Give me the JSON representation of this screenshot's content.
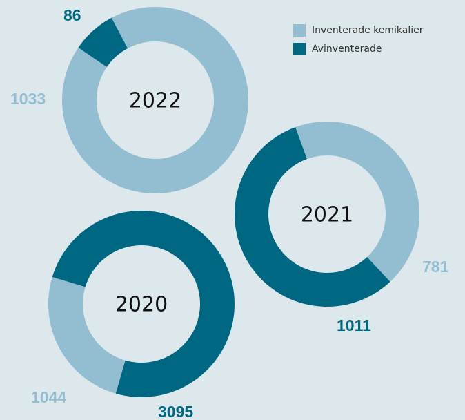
{
  "legend": {
    "categories": [
      "Inventerade kemikalier",
      "Avinventerade"
    ],
    "colors": [
      "#93bdd0",
      "#006783"
    ]
  },
  "chart_data": [
    {
      "type": "donut",
      "title": "2022",
      "values": [
        1033,
        86
      ]
    },
    {
      "type": "donut",
      "title": "2021",
      "values": [
        781,
        1011
      ]
    },
    {
      "type": "donut",
      "title": "2020",
      "values": [
        1044,
        3095
      ]
    }
  ]
}
